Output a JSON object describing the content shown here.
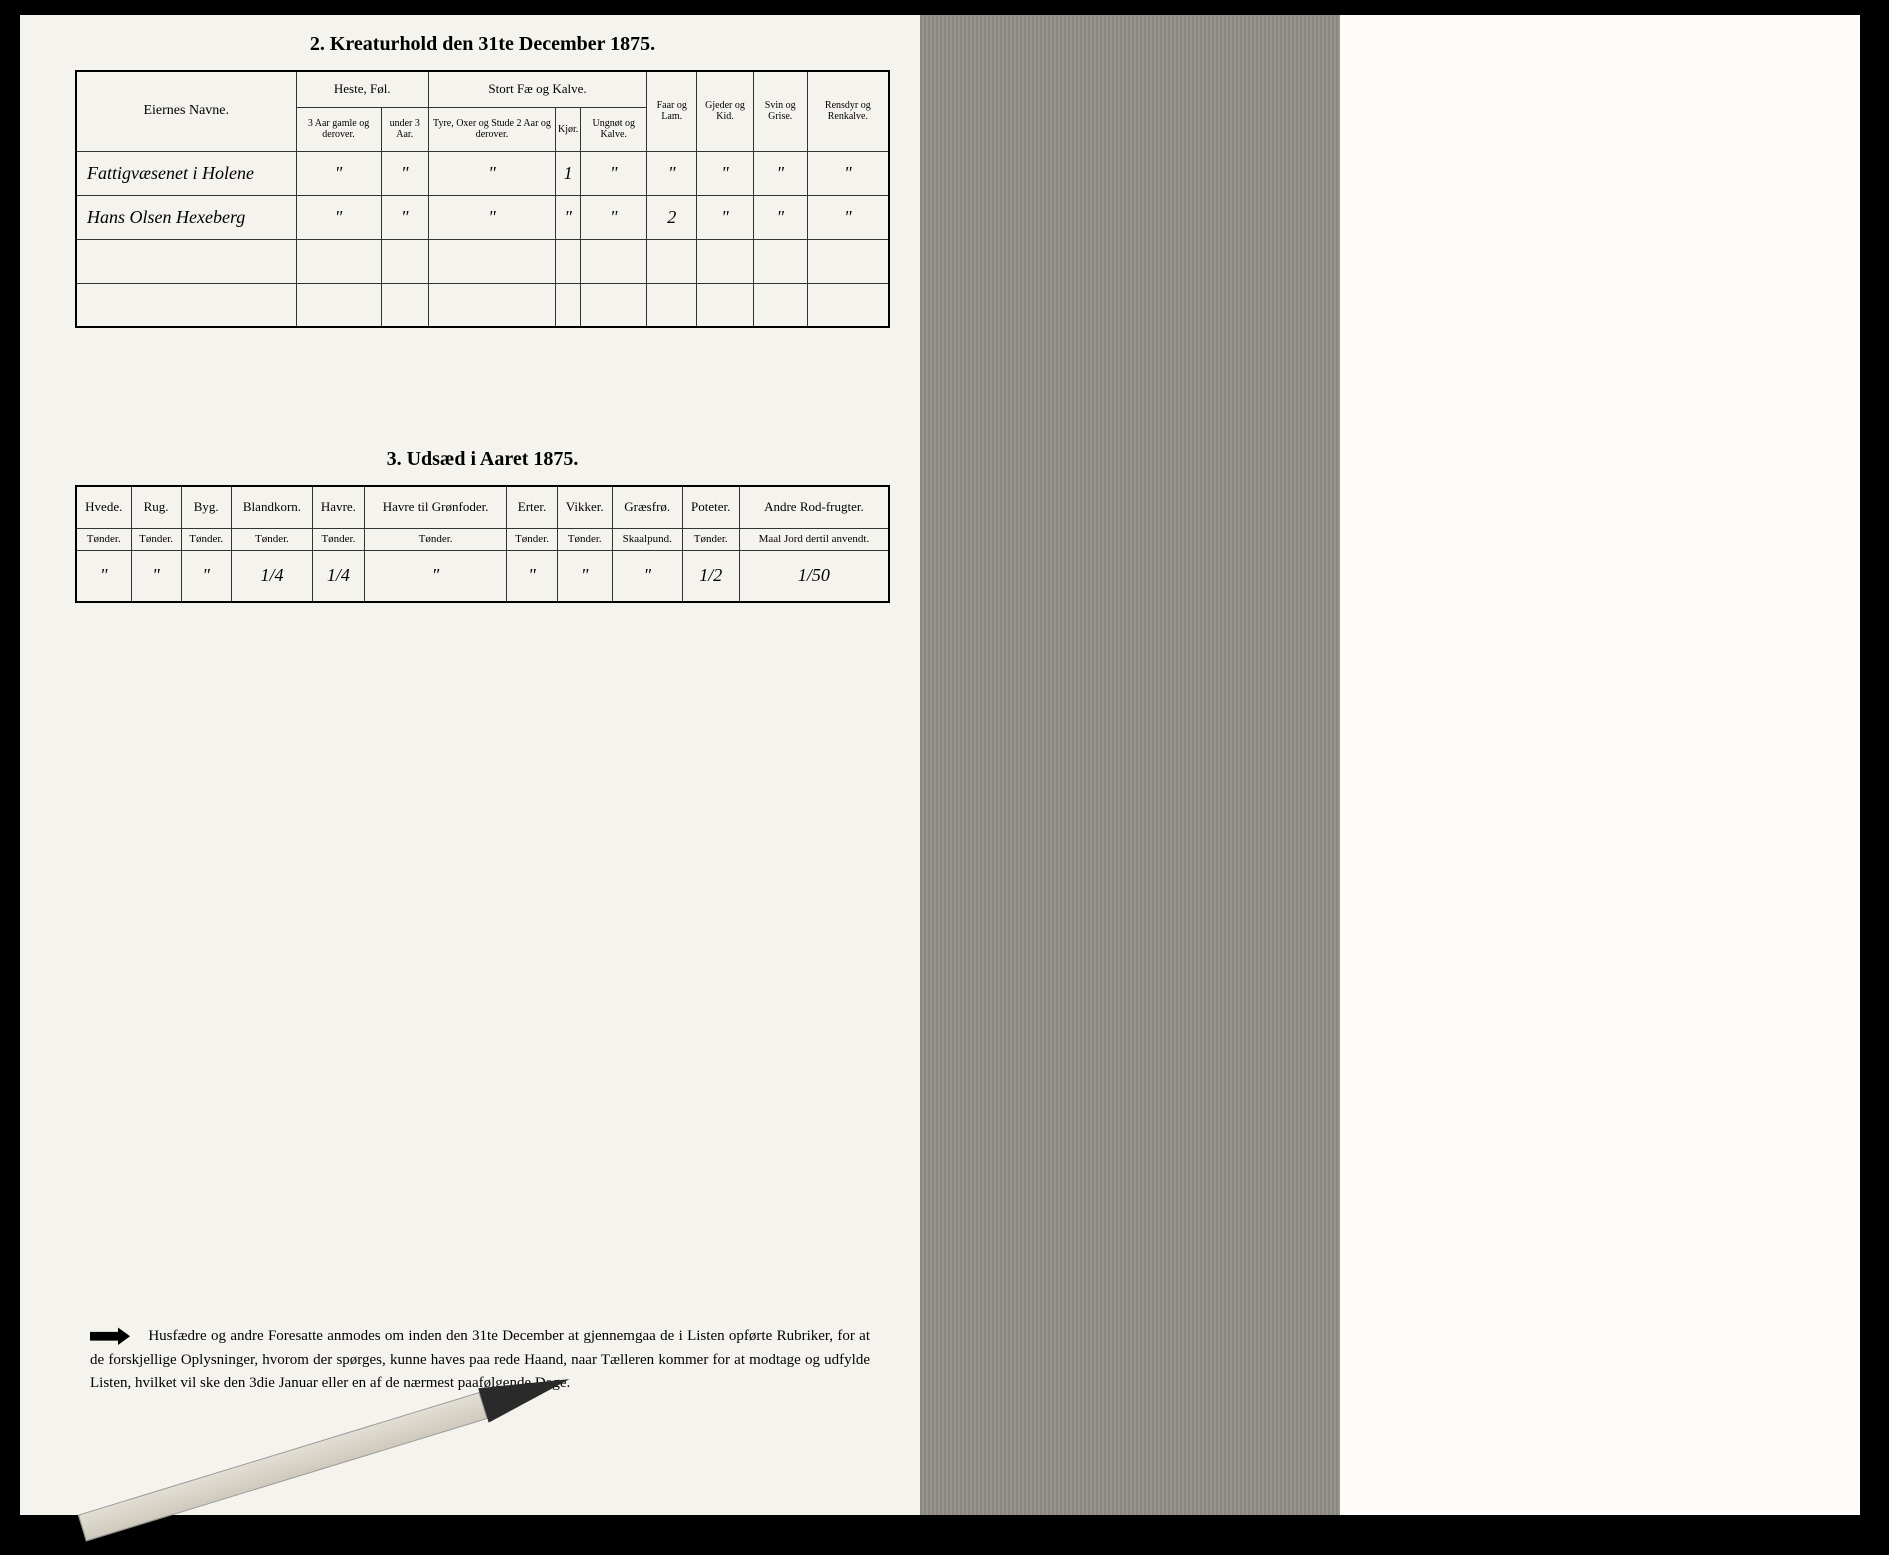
{
  "section2": {
    "title": "2.  Kreaturhold den 31te December 1875.",
    "headers": {
      "owner": "Eiernes Navne.",
      "horses_group": "Heste, Føl.",
      "horses_a": "3 Aar gamle og derover.",
      "horses_b": "under 3 Aar.",
      "cattle_group": "Stort Fæ og Kalve.",
      "cattle_a": "Tyre, Oxer og Stude 2 Aar og derover.",
      "cattle_b": "Kjør.",
      "cattle_c": "Ungnøt og Kalve.",
      "sheep": "Faar og Lam.",
      "goats": "Gjeder og Kid.",
      "pigs": "Svin og Grise.",
      "reindeer": "Rensdyr og Renkalve."
    },
    "rows": [
      {
        "owner": "Fattigvæsenet i Holene",
        "c": [
          "\"",
          "\"",
          "\"",
          "1",
          "\"",
          "\"",
          "\"",
          "\"",
          "\""
        ]
      },
      {
        "owner": "Hans Olsen Hexeberg",
        "c": [
          "\"",
          "\"",
          "\"",
          "\"",
          "\"",
          "2",
          "\"",
          "\"",
          "\""
        ]
      }
    ]
  },
  "section3": {
    "title": "3.  Udsæd i Aaret 1875.",
    "cols": [
      {
        "h": "Hvede.",
        "s": "Tønder."
      },
      {
        "h": "Rug.",
        "s": "Tønder."
      },
      {
        "h": "Byg.",
        "s": "Tønder."
      },
      {
        "h": "Blandkorn.",
        "s": "Tønder."
      },
      {
        "h": "Havre.",
        "s": "Tønder."
      },
      {
        "h": "Havre til Grønfoder.",
        "s": "Tønder."
      },
      {
        "h": "Erter.",
        "s": "Tønder."
      },
      {
        "h": "Vikker.",
        "s": "Tønder."
      },
      {
        "h": "Græsfrø.",
        "s": "Skaalpund."
      },
      {
        "h": "Poteter.",
        "s": "Tønder."
      },
      {
        "h": "Andre Rod-frugter.",
        "s": "Maal Jord dertil anvendt."
      }
    ],
    "row": [
      "\"",
      "\"",
      "\"",
      "1/4",
      "1/4",
      "\"",
      "\"",
      "\"",
      "\"",
      "1/2",
      "1/50"
    ]
  },
  "footnote": "Husfædre og andre Foresatte anmodes om inden den 31te December at gjennemgaa de i Listen opførte Rubriker, for at de forskjellige Oplysninger, hvorom der spørges, kunne haves paa rede Haand, naar Tælleren kommer for at modtage og udfylde Listen, hvilket vil ske den 3die Januar eller en af de nærmest paafølgende Dage."
}
